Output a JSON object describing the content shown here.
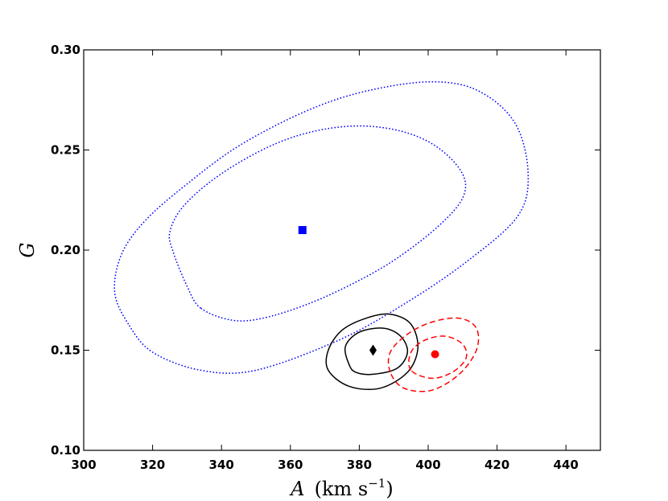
{
  "chart_data": {
    "type": "scatter",
    "title": "",
    "xlabel": {
      "var": "A",
      "unit_prefix": "(km s",
      "unit_sup": "−1",
      "unit_suffix": ")"
    },
    "ylabel": "G",
    "xlim": [
      300,
      450
    ],
    "ylim": [
      0.1,
      0.3
    ],
    "xticks": [
      "300",
      "320",
      "340",
      "360",
      "380",
      "400",
      "420",
      "440"
    ],
    "yticks": [
      "0.10",
      "0.15",
      "0.20",
      "0.25",
      "0.30"
    ],
    "grid": false,
    "legend": "none",
    "series": [
      {
        "marker": "square",
        "color": "#0000ff",
        "point": {
          "x": 363.5,
          "y": 0.21
        },
        "contour_style": "dotted",
        "contours": [
          [
            [
              334,
              0.171
            ],
            [
              330,
              0.182
            ],
            [
              326,
              0.199
            ],
            [
              325,
              0.209
            ],
            [
              329,
              0.222
            ],
            [
              339,
              0.237
            ],
            [
              353,
              0.251
            ],
            [
              366,
              0.259
            ],
            [
              380,
              0.262
            ],
            [
              393,
              0.259
            ],
            [
              403,
              0.251
            ],
            [
              410,
              0.238
            ],
            [
              410,
              0.226
            ],
            [
              403,
              0.212
            ],
            [
              391,
              0.196
            ],
            [
              379,
              0.184
            ],
            [
              365,
              0.173
            ],
            [
              352,
              0.166
            ],
            [
              343,
              0.165
            ]
          ],
          [
            [
              313,
              0.163
            ],
            [
              309,
              0.179
            ],
            [
              311,
              0.198
            ],
            [
              318,
              0.215
            ],
            [
              330,
              0.233
            ],
            [
              345,
              0.252
            ],
            [
              364,
              0.269
            ],
            [
              381,
              0.279
            ],
            [
              400,
              0.284
            ],
            [
              414,
              0.28
            ],
            [
              425,
              0.264
            ],
            [
              429,
              0.239
            ],
            [
              426,
              0.217
            ],
            [
              411,
              0.194
            ],
            [
              393,
              0.173
            ],
            [
              374,
              0.155
            ],
            [
              350,
              0.14
            ],
            [
              334,
              0.14
            ],
            [
              320,
              0.149
            ]
          ]
        ]
      },
      {
        "marker": "diamond",
        "color": "#000000",
        "point": {
          "x": 384,
          "y": 0.15
        },
        "contour_style": "solid",
        "contours": [
          [
            [
              377,
              0.143
            ],
            [
              376,
              0.152
            ],
            [
              380,
              0.159
            ],
            [
              387,
              0.161
            ],
            [
              392,
              0.157
            ],
            [
              394,
              0.149
            ],
            [
              391,
              0.141
            ],
            [
              384,
              0.138
            ],
            [
              379,
              0.139
            ]
          ],
          [
            [
              371,
              0.14
            ],
            [
              371,
              0.15
            ],
            [
              375,
              0.16
            ],
            [
              382,
              0.166
            ],
            [
              389,
              0.168
            ],
            [
              395,
              0.163
            ],
            [
              397,
              0.151
            ],
            [
              394,
              0.139
            ],
            [
              386,
              0.131
            ],
            [
              377,
              0.132
            ]
          ]
        ]
      },
      {
        "marker": "circle",
        "color": "#ff0000",
        "point": {
          "x": 402,
          "y": 0.148
        },
        "contour_style": "dashed",
        "contours": [
          [
            [
              395,
              0.14
            ],
            [
              395,
              0.149
            ],
            [
              399,
              0.155
            ],
            [
              405,
              0.157
            ],
            [
              410,
              0.153
            ],
            [
              411,
              0.146
            ],
            [
              407,
              0.139
            ],
            [
              401,
              0.136
            ]
          ],
          [
            [
              389,
              0.139
            ],
            [
              389,
              0.149
            ],
            [
              394,
              0.158
            ],
            [
              401,
              0.164
            ],
            [
              409,
              0.166
            ],
            [
              414,
              0.161
            ],
            [
              414,
              0.15
            ],
            [
              409,
              0.138
            ],
            [
              401,
              0.13
            ],
            [
              393,
              0.131
            ]
          ]
        ]
      }
    ]
  }
}
